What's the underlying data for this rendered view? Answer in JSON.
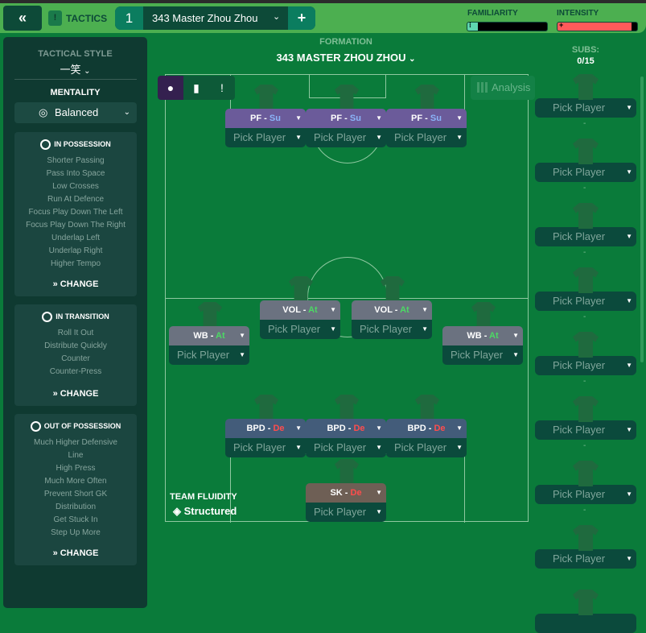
{
  "header": {
    "back_icon": "double-chevron-left-icon",
    "tactics_label": "TACTICS",
    "tactic_number": "1",
    "tactic_name": "343 Master Zhou Zhou",
    "add_label": "+",
    "familiarity": {
      "label": "FAMILIARITY",
      "value_percent": 13,
      "color": "#5fd6b0"
    },
    "intensity": {
      "label": "INTENSITY",
      "value_percent": 93,
      "color": "#ff5a5a"
    }
  },
  "left": {
    "tactical_style_label": "TACTICAL STYLE",
    "tactical_style_value": "一笑",
    "mentality_label": "MENTALITY",
    "mentality_value": "Balanced",
    "cards": [
      {
        "title": "IN POSSESSION",
        "icon": "football-icon",
        "items": [
          "Shorter Passing",
          "Pass Into Space",
          "Low Crosses",
          "Run At Defence",
          "Focus Play Down The Left",
          "Focus Play Down The Right",
          "Underlap Left",
          "Underlap Right",
          "Higher Tempo"
        ],
        "change": "CHANGE"
      },
      {
        "title": "IN TRANSITION",
        "icon": "transition-icon",
        "items": [
          "Roll It Out",
          "Distribute Quickly",
          "Counter",
          "Counter-Press"
        ],
        "change": "CHANGE"
      },
      {
        "title": "OUT OF POSSESSION",
        "icon": "defence-icon",
        "items": [
          "Much Higher Defensive",
          "Line",
          "High Press",
          "Much More Often",
          "Prevent Short GK",
          "Distribution",
          "Get Stuck In",
          "Step Up More"
        ],
        "change": "CHANGE"
      }
    ]
  },
  "pitch": {
    "formation_label": "FORMATION",
    "formation_value": "343 MASTER ZHOU ZHOU",
    "analysis_label": "Analysis",
    "team_fluidity_label": "TEAM FLUIDITY",
    "team_fluidity_value": "Structured",
    "duty_colors": {
      "Su": "#8ab4f8",
      "At": "#4cd964",
      "De": "#ff4d4d"
    },
    "positions": [
      {
        "role": "PF",
        "duty": "Su",
        "player": "Pick Player",
        "color": "#6b5b9a"
      },
      {
        "role": "PF",
        "duty": "Su",
        "player": "Pick Player",
        "color": "#6b5b9a"
      },
      {
        "role": "PF",
        "duty": "Su",
        "player": "Pick Player",
        "color": "#6b5b9a"
      },
      {
        "role": "VOL",
        "duty": "At",
        "player": "Pick Player",
        "color": "#6b7280"
      },
      {
        "role": "VOL",
        "duty": "At",
        "player": "Pick Player",
        "color": "#6b7280"
      },
      {
        "role": "WB",
        "duty": "At",
        "player": "Pick Player",
        "color": "#6b7280"
      },
      {
        "role": "WB",
        "duty": "At",
        "player": "Pick Player",
        "color": "#6b7280"
      },
      {
        "role": "BPD",
        "duty": "De",
        "player": "Pick Player",
        "color": "#435c7a"
      },
      {
        "role": "BPD",
        "duty": "De",
        "player": "Pick Player",
        "color": "#435c7a"
      },
      {
        "role": "BPD",
        "duty": "De",
        "player": "Pick Player",
        "color": "#435c7a"
      },
      {
        "role": "SK",
        "duty": "De",
        "player": "Pick Player",
        "color": "#6e5f55"
      }
    ]
  },
  "subs": {
    "label": "SUBS:",
    "count": "0/15",
    "items": [
      "Pick Player",
      "Pick Player",
      "Pick Player",
      "Pick Player",
      "Pick Player",
      "Pick Player",
      "Pick Player",
      "Pick Player"
    ],
    "empty_marker": "-"
  }
}
